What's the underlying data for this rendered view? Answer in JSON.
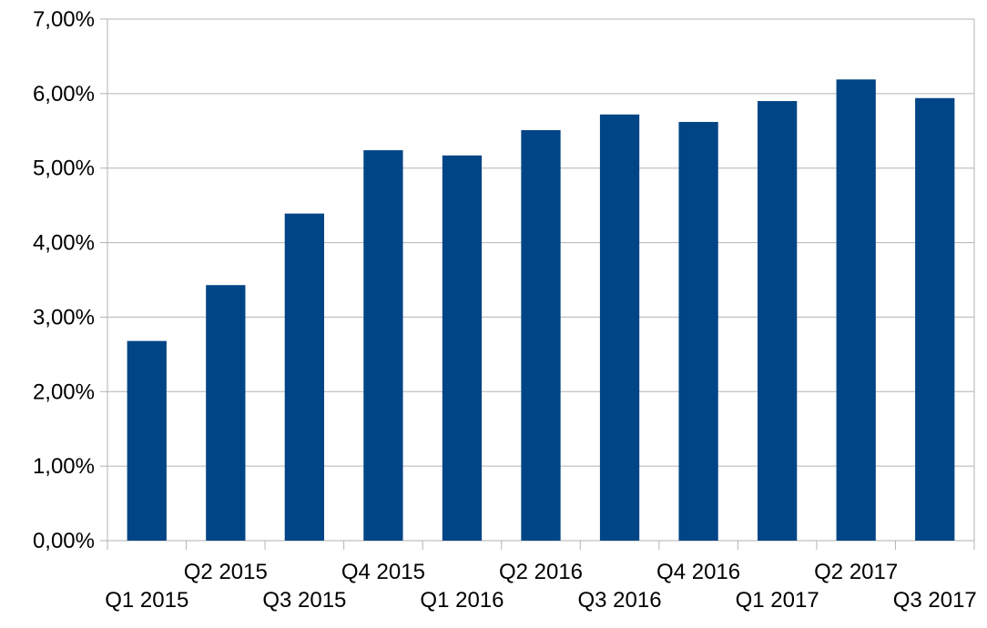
{
  "chart_data": {
    "type": "bar",
    "categories": [
      "Q1 2015",
      "Q2 2015",
      "Q3 2015",
      "Q4 2015",
      "Q1 2016",
      "Q2 2016",
      "Q3 2016",
      "Q4 2016",
      "Q1 2017",
      "Q2 2017",
      "Q3 2017"
    ],
    "values": [
      0.0268,
      0.0343,
      0.0439,
      0.0524,
      0.0517,
      0.0551,
      0.0572,
      0.0562,
      0.059,
      0.0619,
      0.0594
    ],
    "ylim": [
      0,
      0.07
    ],
    "yticks": [
      0,
      0.01,
      0.02,
      0.03,
      0.04,
      0.05,
      0.06,
      0.07
    ],
    "ytick_labels": [
      "0,00%",
      "1,00%",
      "2,00%",
      "3,00%",
      "4,00%",
      "5,00%",
      "6,00%",
      "7,00%"
    ],
    "title": "",
    "xlabel": "",
    "ylabel": "",
    "grid": true,
    "legend": "none",
    "bar_color": "#004586",
    "grid_color": "#b3b3b3"
  }
}
